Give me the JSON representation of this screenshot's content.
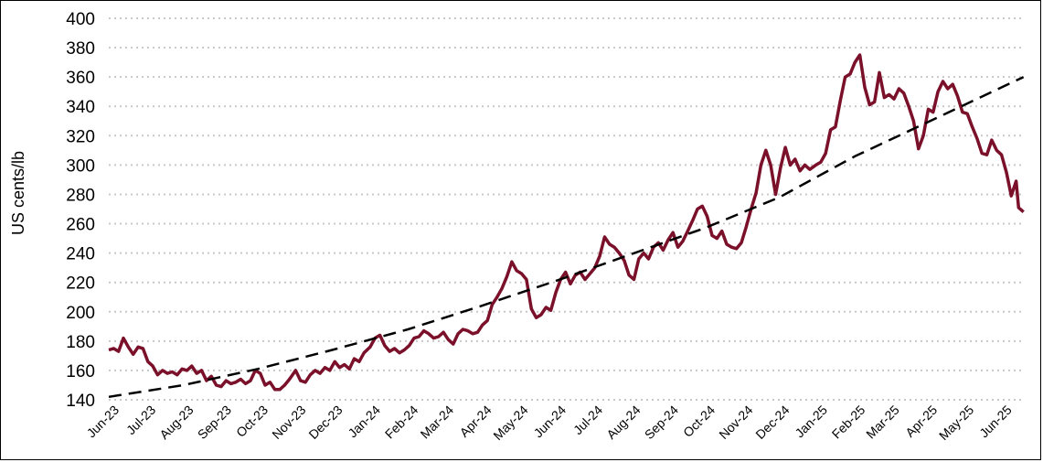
{
  "chart_data": {
    "type": "line",
    "title": "",
    "xlabel": "",
    "ylabel": "US cents/lb",
    "ylim": [
      140,
      400
    ],
    "yticks": [
      140,
      160,
      180,
      200,
      220,
      240,
      260,
      280,
      300,
      320,
      340,
      360,
      380,
      400
    ],
    "xticks": [
      "Jun-23",
      "Jul-23",
      "Aug-23",
      "Sep-23",
      "Oct-23",
      "Nov-23",
      "Dec-23",
      "Jan-24",
      "Feb-24",
      "Mar-24",
      "Apr-24",
      "May-24",
      "Jun-24",
      "Jul-24",
      "Aug-24",
      "Sep-24",
      "Oct-24",
      "Nov-24",
      "Dec-24",
      "Jan-25",
      "Feb-25",
      "Mar-25",
      "Apr-25",
      "May-25",
      "Jun-25"
    ],
    "grid": "horizontal-dotted",
    "legend": "none",
    "series": [
      {
        "style": "solid",
        "color": "#7a1029",
        "points": [
          [
            "2023-06-01",
            174
          ],
          [
            "2023-06-05",
            175
          ],
          [
            "2023-06-09",
            173
          ],
          [
            "2023-06-13",
            182
          ],
          [
            "2023-06-17",
            176
          ],
          [
            "2023-06-21",
            171
          ],
          [
            "2023-06-25",
            176
          ],
          [
            "2023-06-29",
            175
          ],
          [
            "2023-07-03",
            166
          ],
          [
            "2023-07-07",
            163
          ],
          [
            "2023-07-11",
            157
          ],
          [
            "2023-07-15",
            160
          ],
          [
            "2023-07-19",
            158
          ],
          [
            "2023-07-23",
            159
          ],
          [
            "2023-07-27",
            157
          ],
          [
            "2023-07-31",
            161
          ],
          [
            "2023-08-04",
            160
          ],
          [
            "2023-08-08",
            163
          ],
          [
            "2023-08-12",
            158
          ],
          [
            "2023-08-16",
            160
          ],
          [
            "2023-08-20",
            153
          ],
          [
            "2023-08-24",
            156
          ],
          [
            "2023-08-28",
            150
          ],
          [
            "2023-09-01",
            149
          ],
          [
            "2023-09-05",
            153
          ],
          [
            "2023-09-09",
            151
          ],
          [
            "2023-09-13",
            152
          ],
          [
            "2023-09-17",
            154
          ],
          [
            "2023-09-21",
            151
          ],
          [
            "2023-09-25",
            153
          ],
          [
            "2023-09-29",
            160
          ],
          [
            "2023-10-03",
            158
          ],
          [
            "2023-10-07",
            150
          ],
          [
            "2023-10-11",
            152
          ],
          [
            "2023-10-15",
            147
          ],
          [
            "2023-10-19",
            147
          ],
          [
            "2023-10-23",
            150
          ],
          [
            "2023-10-27",
            154
          ],
          [
            "2023-11-01",
            160
          ],
          [
            "2023-11-05",
            153
          ],
          [
            "2023-11-09",
            152
          ],
          [
            "2023-11-13",
            157
          ],
          [
            "2023-11-17",
            160
          ],
          [
            "2023-11-21",
            158
          ],
          [
            "2023-11-25",
            162
          ],
          [
            "2023-11-29",
            160
          ],
          [
            "2023-12-03",
            166
          ],
          [
            "2023-12-07",
            162
          ],
          [
            "2023-12-11",
            164
          ],
          [
            "2023-12-15",
            161
          ],
          [
            "2023-12-19",
            168
          ],
          [
            "2023-12-23",
            166
          ],
          [
            "2023-12-27",
            172
          ],
          [
            "2024-01-01",
            176
          ],
          [
            "2024-01-05",
            182
          ],
          [
            "2024-01-09",
            184
          ],
          [
            "2024-01-13",
            177
          ],
          [
            "2024-01-17",
            173
          ],
          [
            "2024-01-21",
            175
          ],
          [
            "2024-01-25",
            172
          ],
          [
            "2024-01-29",
            174
          ],
          [
            "2024-02-02",
            177
          ],
          [
            "2024-02-06",
            182
          ],
          [
            "2024-02-10",
            183
          ],
          [
            "2024-02-14",
            187
          ],
          [
            "2024-02-18",
            185
          ],
          [
            "2024-02-22",
            182
          ],
          [
            "2024-02-26",
            183
          ],
          [
            "2024-03-01",
            186
          ],
          [
            "2024-03-05",
            181
          ],
          [
            "2024-03-09",
            178
          ],
          [
            "2024-03-13",
            185
          ],
          [
            "2024-03-17",
            188
          ],
          [
            "2024-03-21",
            187
          ],
          [
            "2024-03-25",
            185
          ],
          [
            "2024-03-29",
            186
          ],
          [
            "2024-04-02",
            191
          ],
          [
            "2024-04-06",
            194
          ],
          [
            "2024-04-10",
            205
          ],
          [
            "2024-04-14",
            210
          ],
          [
            "2024-04-18",
            216
          ],
          [
            "2024-04-22",
            224
          ],
          [
            "2024-04-26",
            234
          ],
          [
            "2024-04-30",
            228
          ],
          [
            "2024-05-04",
            226
          ],
          [
            "2024-05-08",
            222
          ],
          [
            "2024-05-12",
            202
          ],
          [
            "2024-05-16",
            196
          ],
          [
            "2024-05-20",
            198
          ],
          [
            "2024-05-24",
            203
          ],
          [
            "2024-05-28",
            201
          ],
          [
            "2024-06-01",
            213
          ],
          [
            "2024-06-05",
            222
          ],
          [
            "2024-06-09",
            227
          ],
          [
            "2024-06-13",
            219
          ],
          [
            "2024-06-17",
            225
          ],
          [
            "2024-06-21",
            227
          ],
          [
            "2024-06-25",
            222
          ],
          [
            "2024-06-29",
            226
          ],
          [
            "2024-07-03",
            230
          ],
          [
            "2024-07-07",
            238
          ],
          [
            "2024-07-11",
            251
          ],
          [
            "2024-07-15",
            246
          ],
          [
            "2024-07-19",
            244
          ],
          [
            "2024-07-23",
            240
          ],
          [
            "2024-07-27",
            235
          ],
          [
            "2024-07-31",
            225
          ],
          [
            "2024-08-04",
            222
          ],
          [
            "2024-08-08",
            236
          ],
          [
            "2024-08-12",
            240
          ],
          [
            "2024-08-16",
            236
          ],
          [
            "2024-08-20",
            244
          ],
          [
            "2024-08-24",
            247
          ],
          [
            "2024-08-28",
            242
          ],
          [
            "2024-09-01",
            249
          ],
          [
            "2024-09-05",
            254
          ],
          [
            "2024-09-09",
            244
          ],
          [
            "2024-09-13",
            248
          ],
          [
            "2024-09-17",
            255
          ],
          [
            "2024-09-21",
            262
          ],
          [
            "2024-09-25",
            270
          ],
          [
            "2024-09-29",
            272
          ],
          [
            "2024-10-03",
            265
          ],
          [
            "2024-10-07",
            252
          ],
          [
            "2024-10-11",
            250
          ],
          [
            "2024-10-15",
            255
          ],
          [
            "2024-10-19",
            246
          ],
          [
            "2024-10-23",
            244
          ],
          [
            "2024-10-27",
            243
          ],
          [
            "2024-10-31",
            247
          ],
          [
            "2024-11-04",
            258
          ],
          [
            "2024-11-08",
            270
          ],
          [
            "2024-11-12",
            281
          ],
          [
            "2024-11-16",
            300
          ],
          [
            "2024-11-20",
            310
          ],
          [
            "2024-11-24",
            300
          ],
          [
            "2024-11-28",
            280
          ],
          [
            "2024-12-02",
            298
          ],
          [
            "2024-12-06",
            312
          ],
          [
            "2024-12-10",
            300
          ],
          [
            "2024-12-14",
            304
          ],
          [
            "2024-12-18",
            296
          ],
          [
            "2024-12-22",
            300
          ],
          [
            "2024-12-26",
            297
          ],
          [
            "2024-12-31",
            300
          ],
          [
            "2025-01-04",
            302
          ],
          [
            "2025-01-08",
            308
          ],
          [
            "2025-01-12",
            324
          ],
          [
            "2025-01-16",
            326
          ],
          [
            "2025-01-20",
            344
          ],
          [
            "2025-01-24",
            360
          ],
          [
            "2025-01-28",
            362
          ],
          [
            "2025-02-01",
            370
          ],
          [
            "2025-02-05",
            375
          ],
          [
            "2025-02-09",
            353
          ],
          [
            "2025-02-13",
            341
          ],
          [
            "2025-02-17",
            343
          ],
          [
            "2025-02-21",
            363
          ],
          [
            "2025-02-25",
            346
          ],
          [
            "2025-03-01",
            348
          ],
          [
            "2025-03-05",
            345
          ],
          [
            "2025-03-09",
            352
          ],
          [
            "2025-03-13",
            349
          ],
          [
            "2025-03-17",
            340
          ],
          [
            "2025-03-21",
            330
          ],
          [
            "2025-03-25",
            311
          ],
          [
            "2025-03-29",
            320
          ],
          [
            "2025-04-02",
            338
          ],
          [
            "2025-04-06",
            336
          ],
          [
            "2025-04-10",
            350
          ],
          [
            "2025-04-14",
            357
          ],
          [
            "2025-04-18",
            352
          ],
          [
            "2025-04-22",
            355
          ],
          [
            "2025-04-26",
            347
          ],
          [
            "2025-04-30",
            336
          ],
          [
            "2025-05-04",
            335
          ],
          [
            "2025-05-08",
            326
          ],
          [
            "2025-05-12",
            318
          ],
          [
            "2025-05-16",
            308
          ],
          [
            "2025-05-20",
            307
          ],
          [
            "2025-05-24",
            317
          ],
          [
            "2025-05-28",
            310
          ],
          [
            "2025-06-01",
            307
          ],
          [
            "2025-06-05",
            295
          ],
          [
            "2025-06-09",
            279
          ],
          [
            "2025-06-13",
            289
          ],
          [
            "2025-06-15",
            271
          ],
          [
            "2025-06-19",
            268
          ]
        ]
      },
      {
        "style": "dashed",
        "color": "#000000",
        "points": [
          [
            "2023-06-01",
            142
          ],
          [
            "2023-08-01",
            150
          ],
          [
            "2023-10-01",
            161
          ],
          [
            "2023-12-01",
            174
          ],
          [
            "2024-02-01",
            188
          ],
          [
            "2024-04-01",
            204
          ],
          [
            "2024-06-01",
            221
          ],
          [
            "2024-08-01",
            239
          ],
          [
            "2024-10-01",
            257
          ],
          [
            "2024-12-01",
            278
          ],
          [
            "2025-02-01",
            306
          ],
          [
            "2025-04-01",
            329
          ],
          [
            "2025-06-19",
            360
          ]
        ]
      }
    ]
  }
}
